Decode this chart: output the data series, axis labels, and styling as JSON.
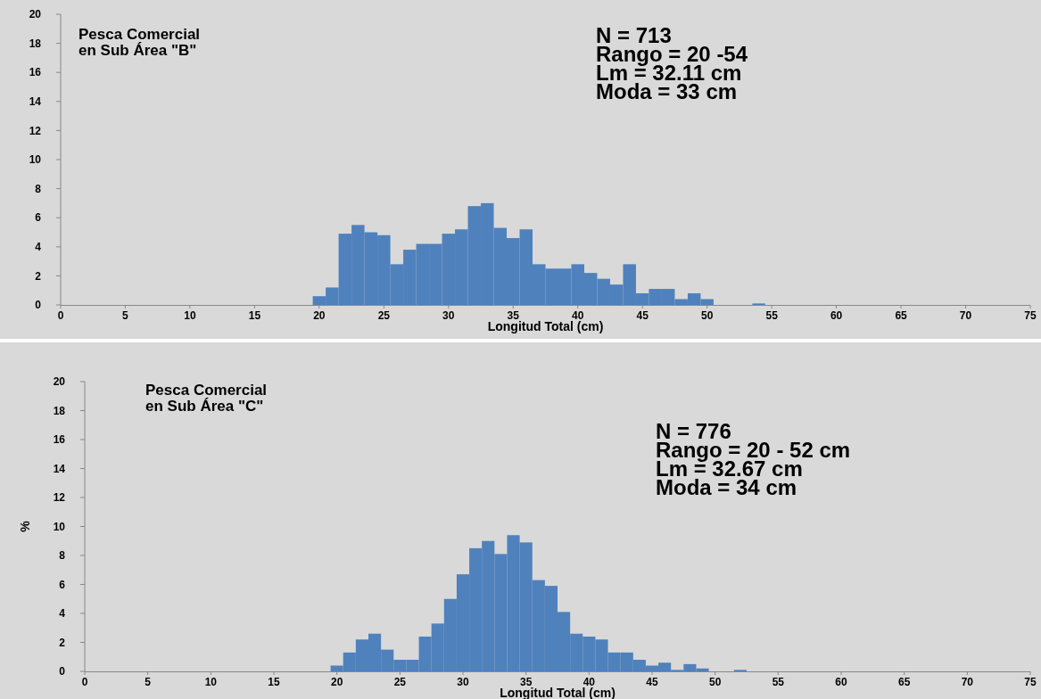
{
  "chart_data": [
    {
      "type": "histogram",
      "title": "Pesca Comercial en Sub Área \"B\"",
      "xlabel": "Longitud Total (cm)",
      "color": "#4f81bd",
      "annotations": [
        "N = 713",
        "Rango = 20 -54",
        "Lm = 32.11 cm",
        "Moda = 33 cm"
      ],
      "bins": [
        19.5,
        20.5,
        21.5,
        22.5,
        23.5,
        24.5,
        25.5,
        26.5,
        27.5,
        28.5,
        29.5,
        30.5,
        31.5,
        32.5,
        33.5,
        34.5,
        35.5,
        36.5,
        37.5,
        38.5,
        39.5,
        40.5,
        41.5,
        42.5,
        43.5,
        44.5,
        45.5,
        46.5,
        47.5,
        48.5,
        49.5,
        50.5,
        51.5,
        52.5,
        53.5,
        54.5
      ],
      "values": [
        0.6,
        1.2,
        4.9,
        5.5,
        5.0,
        4.8,
        2.8,
        3.8,
        4.2,
        4.2,
        4.9,
        5.2,
        6.8,
        7.0,
        5.3,
        4.6,
        5.2,
        2.8,
        2.5,
        2.5,
        2.8,
        2.2,
        1.8,
        1.4,
        2.8,
        0.8,
        1.1,
        1.1,
        0.4,
        0.8,
        0.4,
        0,
        0,
        0,
        0.1
      ],
      "xlim": [
        0,
        75
      ],
      "xticks": [
        0,
        5,
        10,
        15,
        20,
        25,
        30,
        35,
        40,
        45,
        50,
        55,
        60,
        65,
        70,
        75
      ],
      "ylim": [
        0,
        20
      ],
      "yticks": [
        0,
        2,
        4,
        6,
        8,
        10,
        12,
        14,
        16,
        18,
        20
      ]
    },
    {
      "type": "histogram",
      "title": "Pesca Comercial en Sub Área \"C\"",
      "xlabel": "Longitud Total (cm)",
      "ylabel": "%",
      "color": "#4f81bd",
      "annotations": [
        "N = 776",
        "Rango = 20 - 52 cm",
        "Lm = 32.67 cm",
        "Moda = 34 cm"
      ],
      "bins": [
        19.5,
        20.5,
        21.5,
        22.5,
        23.5,
        24.5,
        25.5,
        26.5,
        27.5,
        28.5,
        29.5,
        30.5,
        31.5,
        32.5,
        33.5,
        34.5,
        35.5,
        36.5,
        37.5,
        38.5,
        39.5,
        40.5,
        41.5,
        42.5,
        43.5,
        44.5,
        45.5,
        46.5,
        47.5,
        48.5,
        49.5,
        50.5,
        51.5,
        52.5
      ],
      "values": [
        0.4,
        1.3,
        2.2,
        2.6,
        1.5,
        0.8,
        0.8,
        2.4,
        3.3,
        5.0,
        6.7,
        8.5,
        9.0,
        8.1,
        9.4,
        8.9,
        6.3,
        5.9,
        4.1,
        2.6,
        2.4,
        2.2,
        1.3,
        1.3,
        0.8,
        0.4,
        0.6,
        0.1,
        0.5,
        0.2,
        0,
        0,
        0.1
      ],
      "xlim": [
        0,
        75
      ],
      "xticks": [
        0,
        5,
        10,
        15,
        20,
        25,
        30,
        35,
        40,
        45,
        50,
        55,
        60,
        65,
        70,
        75
      ],
      "ylim": [
        0,
        20
      ],
      "yticks": [
        0,
        2,
        4,
        6,
        8,
        10,
        12,
        14,
        16,
        18,
        20
      ]
    }
  ]
}
